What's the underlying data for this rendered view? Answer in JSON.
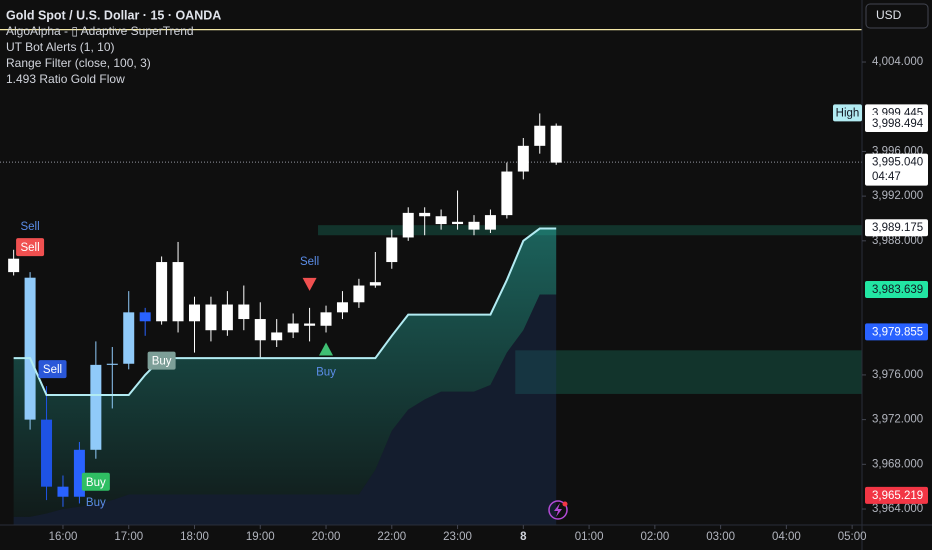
{
  "chart_data": {
    "type": "candlestick",
    "title": "Gold Spot / U.S. Dollar · 15 · OANDA",
    "indicators": [
      "AlgoAlpha - ▯ Adaptive SuperTrend",
      "UT Bot Alerts (1, 10)",
      "Range Filter (close, 100, 3)",
      "1.493 Ratio Gold Flow"
    ],
    "currency_button": "USD",
    "x": [
      -3,
      -2,
      -1,
      0,
      1,
      2,
      3,
      4,
      5,
      6,
      7,
      8,
      9,
      10,
      11,
      12,
      13,
      14,
      15,
      16,
      17,
      18,
      19,
      20,
      21,
      22,
      23,
      24,
      25,
      26,
      27,
      28,
      29,
      30
    ],
    "open": [
      3985.2,
      3984.7,
      3972.0,
      3966.0,
      3965.1,
      3969.3,
      3976.9,
      3977.0,
      3981.6,
      3980.8,
      3986.1,
      3980.8,
      3982.3,
      3980.0,
      3982.3,
      3981.0,
      3979.1,
      3979.8,
      3980.6,
      3980.4,
      3981.6,
      3982.5,
      3984.0,
      3986.1,
      3988.3,
      3990.5,
      3990.2,
      3989.5,
      3989.7,
      3989.0,
      3990.3,
      3994.2,
      3996.5,
      3998.3
    ],
    "high": [
      3987.2,
      3985.2,
      3975.0,
      3967.0,
      3970.0,
      3979.0,
      3978.5,
      3983.5,
      3982.0,
      3986.6,
      3987.9,
      3983.0,
      3983.0,
      3983.5,
      3984.0,
      3982.5,
      3981.0,
      3981.5,
      3982.0,
      3982.2,
      3983.5,
      3984.6,
      3987.0,
      3989.0,
      3991.0,
      3991.0,
      3990.8,
      3992.5,
      3990.3,
      3990.8,
      3995.0,
      3997.2,
      3999.4,
      3998.5
    ],
    "low": [
      3984.9,
      3971.1,
      3964.8,
      3964.2,
      3964.5,
      3968.5,
      3973.0,
      3976.5,
      3979.5,
      3980.5,
      3979.8,
      3978.0,
      3979.0,
      3979.5,
      3980.0,
      3977.5,
      3978.5,
      3979.3,
      3979.0,
      3979.8,
      3981.0,
      3982.0,
      3983.8,
      3985.5,
      3988.0,
      3988.5,
      3989.0,
      3989.0,
      3988.5,
      3988.7,
      3990.0,
      3993.5,
      3995.8,
      3994.8
    ],
    "close": [
      3986.4,
      3972.0,
      3966.0,
      3965.1,
      3969.3,
      3976.9,
      3977.0,
      3981.6,
      3980.8,
      3986.1,
      3980.8,
      3982.3,
      3980.0,
      3982.3,
      3981.0,
      3979.1,
      3979.8,
      3980.6,
      3980.4,
      3981.6,
      3982.5,
      3984.0,
      3984.3,
      3988.3,
      3990.5,
      3990.2,
      3989.5,
      3989.7,
      3989.0,
      3990.3,
      3994.2,
      3996.5,
      3998.3,
      3995.0
    ],
    "colors": [
      "#ffffff",
      "#90caf9",
      "#1e53e5",
      "#2962ff",
      "#2962ff",
      "#90caf9",
      "#90caf9",
      "#90caf9",
      "#2962ff",
      "#ffffff",
      "#ffffff",
      "#ffffff",
      "#ffffff",
      "#ffffff",
      "#ffffff",
      "#ffffff",
      "#ffffff",
      "#ffffff",
      "#ffffff",
      "#ffffff",
      "#ffffff",
      "#ffffff",
      "#ffffff",
      "#ffffff",
      "#ffffff",
      "#ffffff",
      "#ffffff",
      "#ffffff",
      "#ffffff",
      "#ffffff",
      "#ffffff",
      "#ffffff",
      "#ffffff",
      "#ffffff"
    ],
    "supertrend": {
      "color": "#b2ebf2",
      "values": [
        3977.5,
        3977.5,
        3974.2,
        3974.2,
        3974.2,
        3974.2,
        3974.2,
        3974.2,
        3976.0,
        3977.5,
        3977.5,
        3977.5,
        3977.5,
        3977.5,
        3977.5,
        3977.5,
        3977.5,
        3977.5,
        3977.5,
        3977.5,
        3977.5,
        3977.5,
        3977.5,
        3979.5,
        3981.4,
        3981.4,
        3981.4,
        3981.4,
        3981.4,
        3981.4,
        3984.5,
        3988.0,
        3989.1,
        3989.1
      ]
    },
    "lower_band": {
      "color": "#1f3a6b",
      "values": [
        3963.3,
        3963.3,
        3963.6,
        3964.0,
        3964.2,
        3964.4,
        3964.8,
        3965.3,
        3965.3,
        3965.3,
        3965.3,
        3965.3,
        3965.3,
        3965.3,
        3965.3,
        3965.3,
        3965.3,
        3965.3,
        3965.3,
        3965.3,
        3965.3,
        3965.3,
        3967.5,
        3971.0,
        3972.9,
        3973.8,
        3974.5,
        3974.5,
        3974.5,
        3975.1,
        3978.0,
        3980.0,
        3983.2,
        3983.2
      ]
    },
    "zones": [
      {
        "from": 3988.5,
        "to": 3989.4,
        "start": 16
      },
      {
        "from": 3974.3,
        "to": 3978.2,
        "start": 28
      }
    ],
    "level_line": {
      "value": 4006.9,
      "color": "#f5e9a8"
    },
    "signals": [
      {
        "label": "Sell",
        "style": "text-blue",
        "candle": -2
      },
      {
        "label": "Sell",
        "style": "box-red",
        "candle": -2
      },
      {
        "label": "Sell",
        "style": "box-blue",
        "candle": -1
      },
      {
        "label": "Buy",
        "style": "box-green",
        "candle": 2
      },
      {
        "label": "Buy",
        "style": "text-blue-below",
        "candle": 2
      },
      {
        "label": "Buy",
        "style": "box-gray",
        "candle": 6
      },
      {
        "label": "Sell",
        "style": "triangle-red",
        "candle": 15
      },
      {
        "label": "Buy",
        "style": "triangle-green",
        "candle": 16
      }
    ],
    "price_labels": [
      {
        "value": 3999.445,
        "label": "3,999.445",
        "tag": "High",
        "color": "#ffffff"
      },
      {
        "value": 3998.494,
        "label": "3,998.494",
        "color": "#ffffff"
      },
      {
        "value": 3995.04,
        "label": "3,995.040",
        "countdown": "04:47",
        "color": "#ffffff"
      },
      {
        "value": 3989.175,
        "label": "3,989.175",
        "color": "#ffffff"
      },
      {
        "value": 3983.639,
        "label": "3,983.639",
        "color": "#22e6a3"
      },
      {
        "value": 3979.855,
        "label": "3,979.855",
        "color": "#2962ff"
      },
      {
        "value": 3965.219,
        "label": "3,965.219",
        "color": "#f23645"
      }
    ],
    "ylim": [
      3962.57,
      4009.55
    ],
    "yticks": [
      {
        "value": 4004,
        "label": "4,004.000"
      },
      {
        "value": 3996,
        "label": "3,996.000"
      },
      {
        "value": 3992,
        "label": "3,992.000"
      },
      {
        "value": 3988,
        "label": "3,988.000"
      },
      {
        "value": 3976,
        "label": "3,976.000"
      },
      {
        "value": 3972,
        "label": "3,972.000"
      },
      {
        "value": 3968,
        "label": "3,968.000"
      },
      {
        "value": 3964,
        "label": "3,964.000"
      }
    ],
    "xlim": [
      -3.83,
      48.6
    ],
    "xticks": [
      {
        "value": 0,
        "label": "16:00"
      },
      {
        "value": 4,
        "label": "17:00"
      },
      {
        "value": 8,
        "label": "18:00"
      },
      {
        "value": 12,
        "label": "19:00"
      },
      {
        "value": 16,
        "label": "20:00"
      },
      {
        "value": 20,
        "label": "22:00"
      },
      {
        "value": 24,
        "label": "23:00"
      },
      {
        "value": 28,
        "label": "8"
      },
      {
        "value": 32,
        "label": "01:00"
      },
      {
        "value": 36,
        "label": "02:00"
      },
      {
        "value": 40,
        "label": "03:00"
      },
      {
        "value": 44,
        "label": "04:00"
      },
      {
        "value": 48,
        "label": "05:00"
      }
    ]
  }
}
